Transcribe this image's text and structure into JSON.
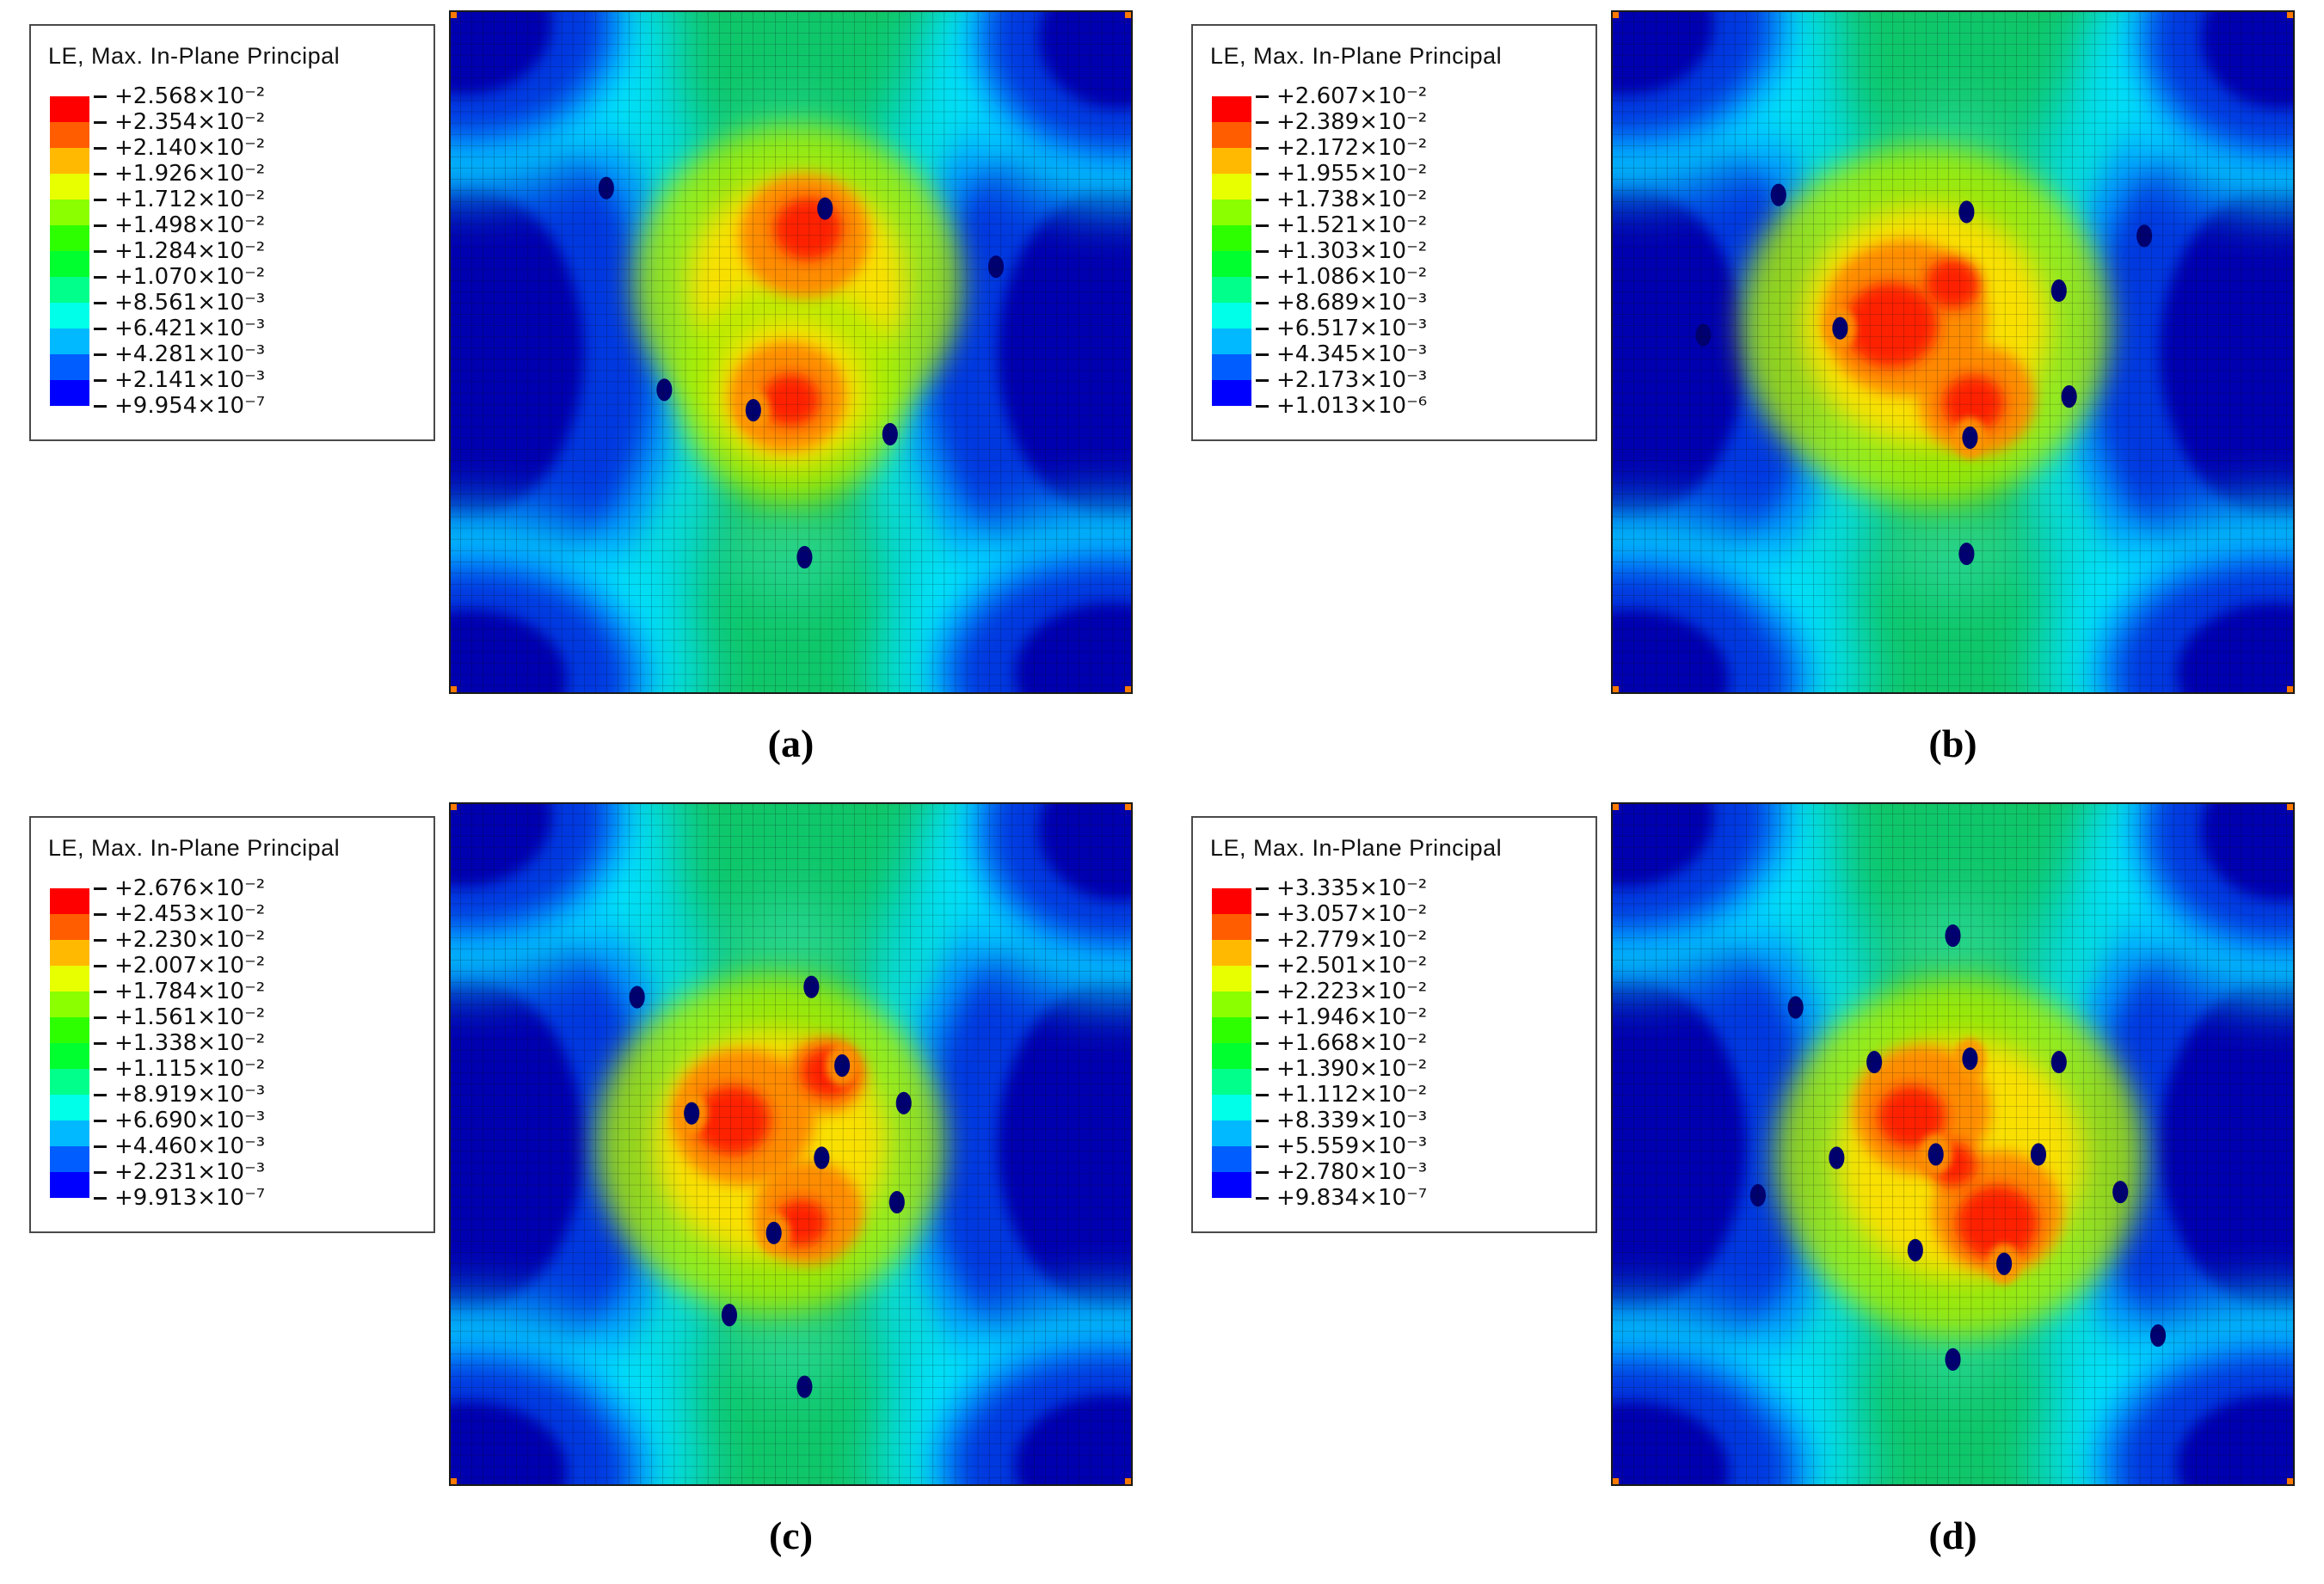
{
  "legend_colors": [
    "#FF0000",
    "#FF5D00",
    "#FFB900",
    "#E8FF00",
    "#8BFF00",
    "#2EFF00",
    "#00FF2E",
    "#00FF8B",
    "#00FFE8",
    "#00B9FF",
    "#005DFF",
    "#0000FF"
  ],
  "panels": [
    {
      "caption": "(a)",
      "legend_title": "LE, Max. In-Plane Principal",
      "values": [
        "+2.568×10⁻²",
        "+2.354×10⁻²",
        "+2.140×10⁻²",
        "+1.926×10⁻²",
        "+1.712×10⁻²",
        "+1.498×10⁻²",
        "+1.284×10⁻²",
        "+1.070×10⁻²",
        "+8.561×10⁻³",
        "+6.421×10⁻³",
        "+4.281×10⁻³",
        "+2.141×10⁻³",
        "+9.954×10⁻⁷"
      ]
    },
    {
      "caption": "(b)",
      "legend_title": "LE, Max. In-Plane Principal",
      "values": [
        "+2.607×10⁻²",
        "+2.389×10⁻²",
        "+2.172×10⁻²",
        "+1.955×10⁻²",
        "+1.738×10⁻²",
        "+1.521×10⁻²",
        "+1.303×10⁻²",
        "+1.086×10⁻²",
        "+8.689×10⁻³",
        "+6.517×10⁻³",
        "+4.345×10⁻³",
        "+2.173×10⁻³",
        "+1.013×10⁻⁶"
      ]
    },
    {
      "caption": "(c)",
      "legend_title": "LE, Max. In-Plane Principal",
      "values": [
        "+2.676×10⁻²",
        "+2.453×10⁻²",
        "+2.230×10⁻²",
        "+2.007×10⁻²",
        "+1.784×10⁻²",
        "+1.561×10⁻²",
        "+1.338×10⁻²",
        "+1.115×10⁻²",
        "+8.919×10⁻³",
        "+6.690×10⁻³",
        "+4.460×10⁻³",
        "+2.231×10⁻³",
        "+9.913×10⁻⁷"
      ]
    },
    {
      "caption": "(d)",
      "legend_title": "LE, Max. In-Plane Principal",
      "values": [
        "+3.335×10⁻²",
        "+3.057×10⁻²",
        "+2.779×10⁻²",
        "+2.501×10⁻²",
        "+2.223×10⁻²",
        "+1.946×10⁻²",
        "+1.668×10⁻²",
        "+1.390×10⁻²",
        "+1.112×10⁻²",
        "+8.339×10⁻³",
        "+5.559×10⁻³",
        "+2.780×10⁻³",
        "+9.834×10⁻⁷"
      ]
    }
  ],
  "chart_data": [
    {
      "type": "heatmap",
      "panel": "a",
      "title": "LE, Max. In-Plane Principal",
      "legend_position": "left",
      "colorbar_ticks": [
        0.02568,
        0.02354,
        0.0214,
        0.01926,
        0.01712,
        0.01498,
        0.01284,
        0.0107,
        0.008561,
        0.006421,
        0.004281,
        0.002141,
        9.954e-07
      ]
    },
    {
      "type": "heatmap",
      "panel": "b",
      "title": "LE, Max. In-Plane Principal",
      "legend_position": "left",
      "colorbar_ticks": [
        0.02607,
        0.02389,
        0.02172,
        0.01955,
        0.01738,
        0.01521,
        0.01303,
        0.01086,
        0.008689,
        0.006517,
        0.004345,
        0.002173,
        1.013e-06
      ]
    },
    {
      "type": "heatmap",
      "panel": "c",
      "title": "LE, Max. In-Plane Principal",
      "legend_position": "left",
      "colorbar_ticks": [
        0.02676,
        0.02453,
        0.0223,
        0.02007,
        0.01784,
        0.01561,
        0.01338,
        0.01115,
        0.008919,
        0.00669,
        0.00446,
        0.002231,
        9.913e-07
      ]
    },
    {
      "type": "heatmap",
      "panel": "d",
      "title": "LE, Max. In-Plane Principal",
      "legend_position": "left",
      "colorbar_ticks": [
        0.03335,
        0.03057,
        0.02779,
        0.02501,
        0.02223,
        0.01946,
        0.01668,
        0.0139,
        0.01112,
        0.008339,
        0.005559,
        0.00278,
        9.834e-07
      ]
    }
  ]
}
